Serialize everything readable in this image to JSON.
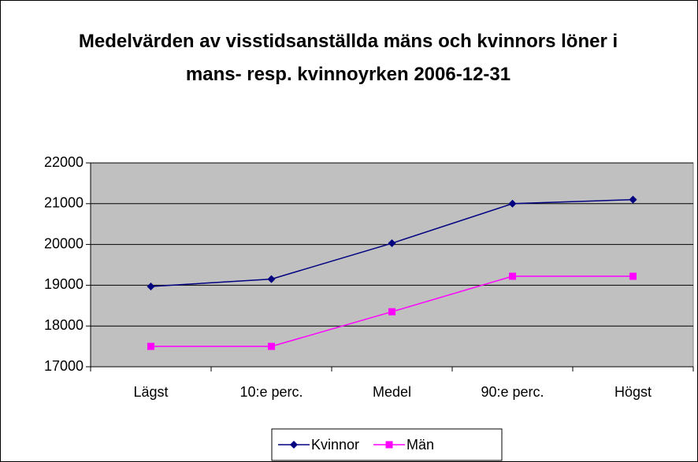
{
  "chart_data": {
    "type": "line",
    "title": "Medelvärden av visstidsanställda mäns och kvinnors löner i mans- resp. kvinnoyrken 2006-12-31",
    "categories": [
      "Lägst",
      "10:e perc.",
      "Medel",
      "90:e perc.",
      "Högst"
    ],
    "series": [
      {
        "name": "Kvinnor",
        "color": "#000080",
        "marker": "diamond",
        "values": [
          18970,
          19150,
          20030,
          21000,
          21100
        ]
      },
      {
        "name": "Män",
        "color": "#ff00ff",
        "marker": "square",
        "values": [
          17500,
          17500,
          18350,
          19220,
          19220
        ]
      }
    ],
    "ylim": [
      17000,
      22000
    ],
    "yticks": [
      17000,
      18000,
      19000,
      20000,
      21000,
      22000
    ],
    "grid": true,
    "legend": "bottom"
  }
}
